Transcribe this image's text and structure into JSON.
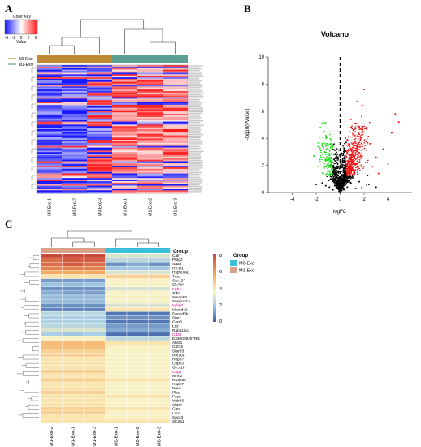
{
  "panels": {
    "a": "A",
    "b": "B",
    "c": "C"
  },
  "panel_a": {
    "color_key": {
      "title": "Color Key",
      "ticks": [
        "-6",
        "-2",
        "0",
        "2",
        "6"
      ],
      "xlabel": "Value"
    },
    "legend": [
      {
        "label": "N0-Exo",
        "color": "#c08a32"
      },
      {
        "label": "M1-Exo",
        "color": "#5aa094"
      }
    ],
    "columns": [
      "M0-Exo-1",
      "M0-Exo-2",
      "M0-Exo-3",
      "M1-Exo-1",
      "M1-Exo-2",
      "M1-Exo-3"
    ],
    "colors": {
      "low": "#1a1aff",
      "mid": "#ffffff",
      "high": "#ff1a1a"
    }
  },
  "chart_data": [
    {
      "type": "scatter",
      "title": "Volcano",
      "xlabel": "logFC",
      "ylabel": "-log10(Pvalue)",
      "xlim": [
        -6,
        6
      ],
      "ylim": [
        0,
        10
      ],
      "xticks": [
        -4,
        -2,
        0,
        2,
        4
      ],
      "yticks": [
        0,
        2,
        4,
        6,
        8,
        10
      ],
      "threshold_x": 0,
      "grid": false,
      "colors": {
        "up": "#ee1111",
        "down": "#11dd11",
        "ns": "#000000"
      },
      "points": [
        [
          4.9,
          5.2
        ],
        [
          4.6,
          5.8
        ],
        [
          4.3,
          4.4
        ],
        [
          4.0,
          2.1
        ],
        [
          3.6,
          3.2
        ],
        [
          3.2,
          1.4
        ],
        [
          3.0,
          2.6
        ],
        [
          2.7,
          1.9
        ],
        [
          2.5,
          3.6
        ],
        [
          2.2,
          4.8
        ],
        [
          2.0,
          7.6
        ],
        [
          1.9,
          6.4
        ],
        [
          1.8,
          5.6
        ],
        [
          1.7,
          3.9
        ],
        [
          1.6,
          4.3
        ],
        [
          1.5,
          2.7
        ],
        [
          1.4,
          6.7
        ],
        [
          1.3,
          5.1
        ],
        [
          1.2,
          3.1
        ],
        [
          1.1,
          4.6
        ],
        [
          1.0,
          2.3
        ],
        [
          0.9,
          5.4
        ],
        [
          0.8,
          3.4
        ],
        [
          0.7,
          4.1
        ],
        [
          0.6,
          2.9
        ],
        [
          0.5,
          3.7
        ],
        [
          0.4,
          2.4
        ],
        [
          0.3,
          1.6
        ],
        [
          0.2,
          1.2
        ],
        [
          0.1,
          0.8
        ],
        [
          -0.2,
          1.8
        ],
        [
          -0.4,
          2.8
        ],
        [
          -0.6,
          1.5
        ],
        [
          -0.8,
          3.3
        ],
        [
          -1.0,
          2.2
        ],
        [
          -1.2,
          4.0
        ],
        [
          -1.4,
          2.6
        ],
        [
          -1.6,
          3.1
        ],
        [
          -1.8,
          1.9
        ],
        [
          -2.2,
          2.7
        ],
        [
          -0.1,
          0.3
        ],
        [
          0.0,
          0.5
        ],
        [
          0.3,
          0.2
        ],
        [
          -0.3,
          0.6
        ],
        [
          0.6,
          0.4
        ],
        [
          -0.6,
          0.2
        ],
        [
          0.9,
          0.7
        ],
        [
          -0.9,
          0.4
        ],
        [
          1.3,
          0.3
        ],
        [
          -1.2,
          0.5
        ],
        [
          0.2,
          0.9
        ],
        [
          -0.2,
          1.1
        ],
        [
          0.5,
          1.0
        ],
        [
          -0.5,
          0.9
        ],
        [
          0.8,
          1.2
        ],
        [
          -0.8,
          1.0
        ],
        [
          1.1,
          1.1
        ],
        [
          -1.1,
          1.2
        ],
        [
          1.6,
          0.8
        ],
        [
          -1.5,
          0.7
        ],
        [
          2.4,
          0.6
        ],
        [
          3.0,
          0.4
        ],
        [
          -2.0,
          0.6
        ],
        [
          0.4,
          1.4
        ],
        [
          -0.4,
          1.3
        ]
      ]
    },
    {
      "type": "heatmap",
      "legend_title": "Group",
      "legend_items": [
        {
          "label": "M0-Exo",
          "color": "#3cbfd8"
        },
        {
          "label": "M1-Exo",
          "color": "#d9a08a"
        }
      ],
      "scale_ticks": [
        "0",
        "2",
        "4",
        "6",
        "8"
      ],
      "columns": [
        "M1-Exo-2",
        "M1-Exo-1",
        "M1-Exo-3",
        "M0-Exo-1",
        "M0-Exo-2",
        "M0-Exo-3"
      ],
      "rows": [
        "Calr",
        "Ptdg2",
        "Saa3",
        "H2-D1",
        "Hsp90aa1",
        "Tns1",
        "Gpr157",
        "Zfp704",
        "Fgfr1",
        "Cfbl",
        "Smon19",
        "Serpinb1a",
        "Igfbp4",
        "Mamdc2",
        "Dennd5b",
        "Stat1",
        "Gbp3",
        "Lss",
        "Rab11fip1",
        "Cd38",
        "E330009J07Rik",
        "Abcf1",
        "Gdf15",
        "Stard3",
        "Rnf168",
        "Hepb7",
        "Cnpy3",
        "Grcc10",
        "Cbg2",
        "Mrm2",
        "Rad23a",
        "Hspb7",
        "Naxe",
        "Plau",
        "Fasn",
        "Wdr46",
        "Atas1",
        "Gan",
        "Lcn2",
        "Socs3",
        "Slc2a1"
      ],
      "highlight_rows": [
        "Fgfr1",
        "Igfbp4",
        "Cd38",
        "Cbg2"
      ],
      "values": [
        [
          8,
          8,
          8,
          3,
          3,
          3
        ],
        [
          7,
          7.5,
          7.5,
          2.5,
          2.5,
          2.5
        ],
        [
          7,
          7.5,
          7,
          1,
          1.5,
          1
        ],
        [
          6.5,
          6.5,
          6.5,
          2,
          2,
          2
        ],
        [
          5.5,
          5.5,
          5.5,
          3,
          3,
          3
        ],
        [
          4,
          4,
          4,
          4.5,
          4.5,
          4.5
        ],
        [
          1.2,
          1.2,
          1.2,
          3.5,
          3.5,
          3.5
        ],
        [
          2,
          1.8,
          2,
          3.5,
          3.5,
          3.5
        ],
        [
          1,
          1,
          1,
          3,
          3,
          3
        ],
        [
          1.5,
          1.3,
          1.3,
          3.5,
          3.5,
          3.5
        ],
        [
          1.8,
          1.8,
          1.8,
          3.5,
          3.5,
          3.5
        ],
        [
          1.8,
          1.8,
          1.8,
          3.5,
          3.5,
          3.5
        ],
        [
          1,
          1,
          1,
          3,
          3,
          3
        ],
        [
          0.8,
          0.8,
          0.8,
          4,
          4,
          4
        ],
        [
          2.5,
          2.5,
          2.5,
          0.5,
          0.5,
          0.5
        ],
        [
          2.2,
          2.2,
          2.2,
          1,
          1,
          1
        ],
        [
          2.3,
          2.3,
          2.3,
          0.5,
          0.5,
          0.5
        ],
        [
          2.5,
          2.5,
          2.5,
          1.2,
          1.2,
          1.2
        ],
        [
          3,
          3,
          3,
          1.5,
          1.5,
          1.5
        ],
        [
          2.2,
          2,
          2.2,
          0.4,
          0.4,
          0.4
        ],
        [
          3.5,
          3.5,
          3.5,
          2.5,
          2.5,
          2.5
        ],
        [
          5,
          5,
          5,
          4,
          4,
          4
        ],
        [
          5,
          5,
          5,
          3.5,
          3.5,
          3.5
        ],
        [
          4.5,
          4.5,
          4.5,
          3.5,
          3.5,
          3.5
        ],
        [
          4.5,
          4.5,
          4.5,
          3.5,
          3.5,
          3.5
        ],
        [
          4,
          4,
          4,
          3.5,
          3.5,
          3.5
        ],
        [
          4,
          4,
          4,
          3.5,
          3.5,
          3.5
        ],
        [
          4,
          4,
          4,
          3.5,
          3.5,
          3.5
        ],
        [
          4.5,
          4.5,
          4.5,
          3.5,
          3.5,
          3.5
        ],
        [
          4,
          4,
          4,
          3.5,
          3.5,
          3.5
        ],
        [
          4.5,
          4.5,
          4.5,
          4,
          4,
          4
        ],
        [
          4,
          4,
          4,
          3.5,
          3.5,
          3.5
        ],
        [
          4,
          4,
          4,
          3.5,
          3.5,
          3.5
        ],
        [
          4.5,
          4.5,
          4.5,
          3.5,
          3.5,
          3.5
        ],
        [
          4,
          4,
          4,
          4,
          4,
          4
        ],
        [
          4,
          4,
          4,
          3.5,
          3.5,
          3.5
        ],
        [
          4,
          4,
          4,
          3.5,
          3.5,
          3.5
        ],
        [
          4.5,
          4.5,
          4.5,
          4,
          4,
          4
        ],
        [
          4.5,
          4.5,
          4.5,
          3.5,
          3.5,
          3.5
        ],
        [
          4,
          4,
          4,
          3.5,
          3.5,
          3.5
        ],
        [
          4,
          4,
          4,
          4,
          4,
          4
        ]
      ]
    }
  ]
}
